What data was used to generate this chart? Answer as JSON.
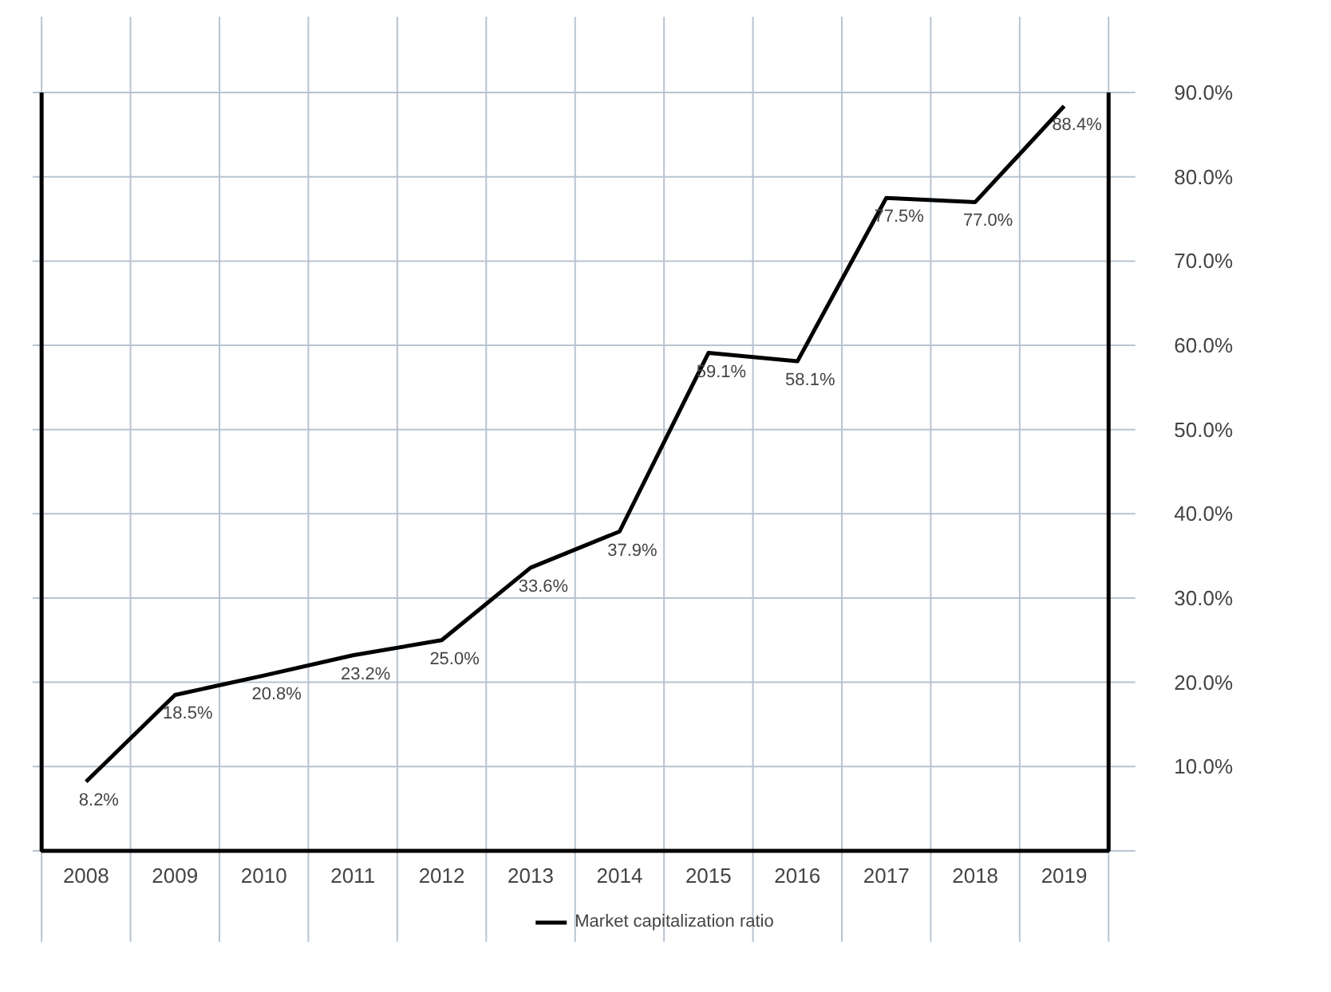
{
  "chart_data": {
    "type": "line",
    "categories": [
      "2008",
      "2009",
      "2010",
      "2011",
      "2012",
      "2013",
      "2014",
      "2015",
      "2016",
      "2017",
      "2018",
      "2019"
    ],
    "series": [
      {
        "name": "Market capitalization ratio",
        "color": "#000000",
        "values": [
          8.2,
          18.5,
          20.8,
          23.2,
          25.0,
          33.6,
          37.9,
          59.1,
          58.1,
          77.5,
          77.0,
          88.4
        ],
        "value_labels": [
          "8.2%",
          "18.5%",
          "20.8%",
          "23.2%",
          "25.0%",
          "33.6%",
          "37.9%",
          "59.1%",
          "58.1%",
          "77.5%",
          "77.0%",
          "88.4%"
        ]
      }
    ],
    "ylim": [
      0,
      90
    ],
    "yticks": [
      {
        "value": 10,
        "label": "10.0%"
      },
      {
        "value": 20,
        "label": "20.0%"
      },
      {
        "value": 30,
        "label": "30.0%"
      },
      {
        "value": 40,
        "label": "40.0%"
      },
      {
        "value": 50,
        "label": "50.0%"
      },
      {
        "value": 60,
        "label": "60.0%"
      },
      {
        "value": 70,
        "label": "70.0%"
      },
      {
        "value": 80,
        "label": "80.0%"
      },
      {
        "value": 90,
        "label": "90.0%"
      }
    ],
    "grid": true,
    "legend": "bottom",
    "marker": "none",
    "line_style": "solid"
  }
}
